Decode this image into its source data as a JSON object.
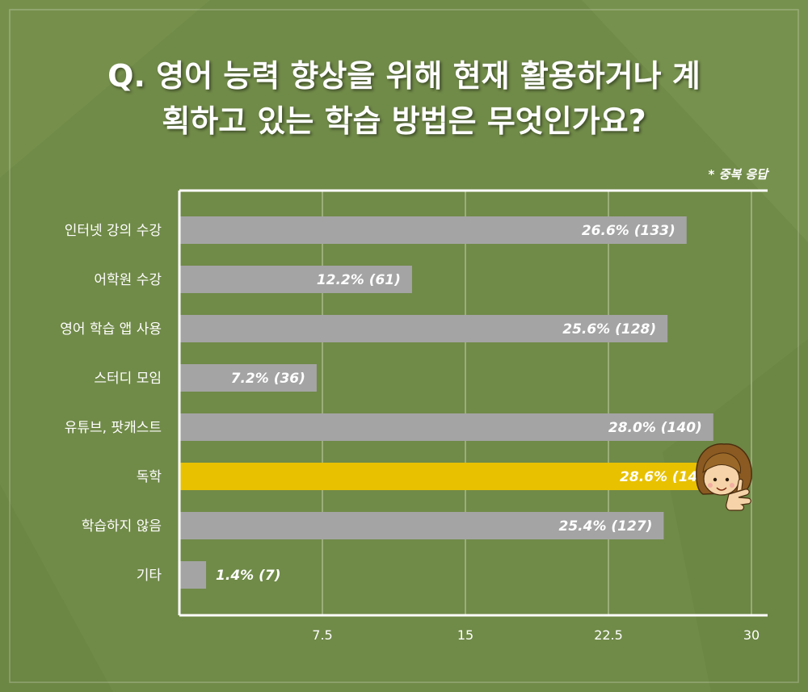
{
  "title_line1": "Q. 영어 능력 향상을 위해 현재 활용하거나 계",
  "title_line2": "획하고 있는 학습 방법은 무엇인가요?",
  "note": "* 중복 응답",
  "colors": {
    "background": "#708a48",
    "bar": "#a4a4a4",
    "highlight": "#e8c100",
    "axis": "#ffffff",
    "text": "#ffffff"
  },
  "chart_data": {
    "type": "bar",
    "orientation": "horizontal",
    "categories": [
      "인터넷 강의 수강",
      "어학원 수강",
      "영어 학습 앱 사용",
      "스터디 모임",
      "유튜브, 팟캐스트",
      "독학",
      "학습하지 않음",
      "기타"
    ],
    "values": [
      26.6,
      12.2,
      25.6,
      7.2,
      28.0,
      28.6,
      25.4,
      1.4
    ],
    "data_labels": [
      "26.6% (133)",
      "12.2% (61)",
      "25.6% (128)",
      "7.2% (36)",
      "28.0% (140)",
      "28.6% (143)",
      "25.4% (127)",
      "1.4% (7)"
    ],
    "highlight_index": 5,
    "xticks": [
      "7.5",
      "15",
      "22.5",
      "30"
    ],
    "xtick_values": [
      7.5,
      15,
      22.5,
      30
    ],
    "xlim": [
      0,
      30
    ],
    "grid": true
  }
}
